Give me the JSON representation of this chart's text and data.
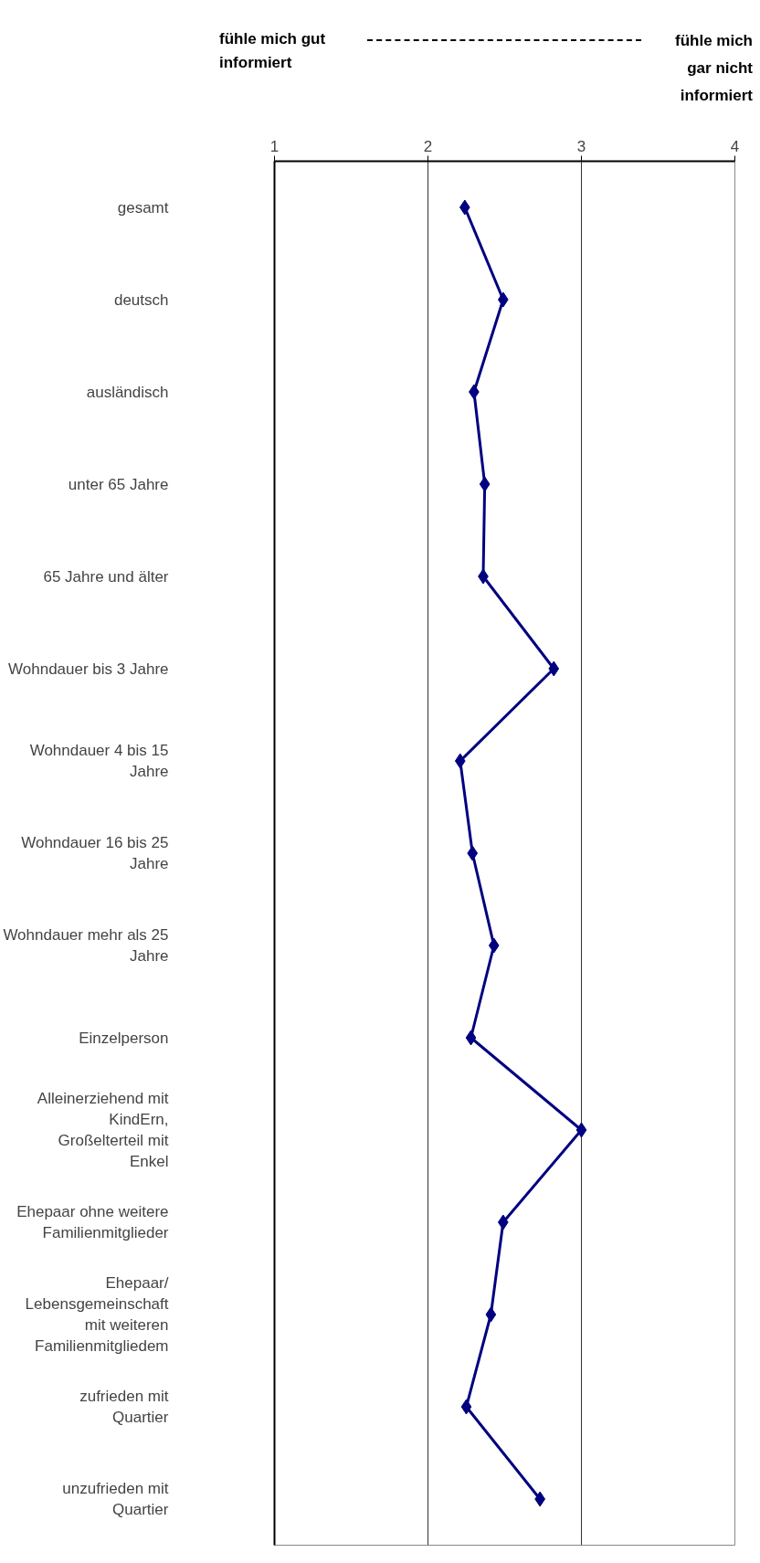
{
  "chart_data": {
    "type": "line",
    "orientation": "horizontal",
    "annotations": [
      "fühle mich gut informiert",
      "fühle mich gar nicht informiert"
    ],
    "categories": [
      "gesamt",
      "deutsch",
      "ausländisch",
      "unter 65 Jahre",
      "65 Jahre und älter",
      "Wohndauer bis 3 Jahre",
      "Wohndauer 4 bis 15 Jahre",
      "Wohndauer 16 bis 25 Jahre",
      "Wohndauer mehr als 25 Jahre",
      "Einzelperson",
      "Alleinerziehend mit KindErn, Großelterteil mit Enkel",
      "Ehepaar ohne weitere Familienmitglieder",
      "Ehepaar/ Lebensgemeinschaft mit weiteren Familienmitgliedem",
      "zufrieden mit Quartier",
      "unzufrieden mit Quartier"
    ],
    "series": [
      {
        "color": "#000080",
        "values": [
          2.24,
          2.49,
          2.3,
          2.37,
          2.36,
          2.82,
          2.21,
          2.29,
          2.43,
          2.28,
          3.0,
          2.49,
          2.41,
          2.25,
          2.73
        ]
      }
    ],
    "xlim": [
      1,
      4
    ],
    "xticks": [
      1,
      2,
      3,
      4
    ],
    "grid": "x",
    "marker": "diamond",
    "line_style": "solid"
  }
}
